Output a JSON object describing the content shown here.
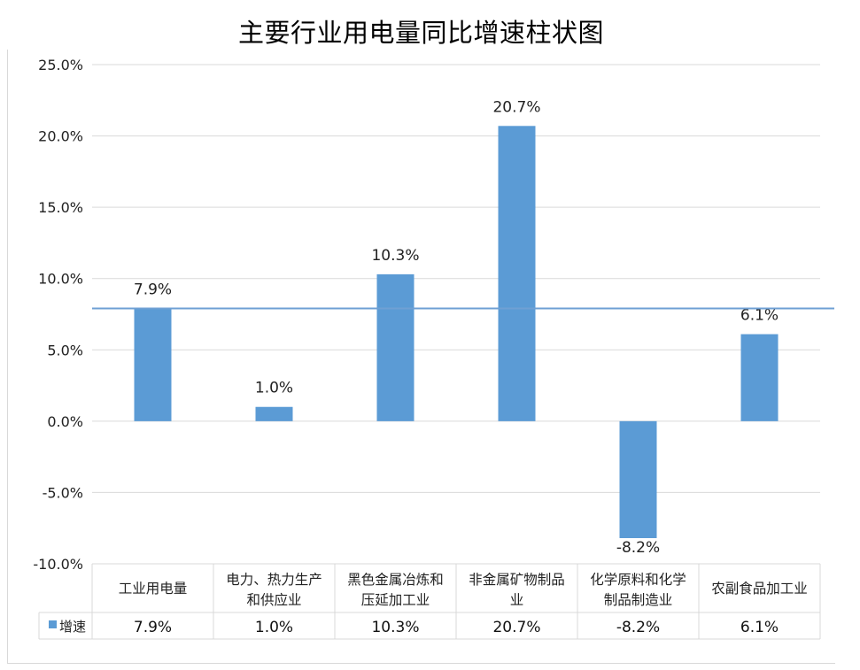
{
  "chart_data": {
    "type": "bar",
    "title": "主要行业用电量同比增速柱状图",
    "categories": [
      [
        "工业用电量"
      ],
      [
        "电力、热力生产",
        "和供应业"
      ],
      [
        "黑色金属冶炼和",
        "压延加工业"
      ],
      [
        "非金属矿物制品",
        "业"
      ],
      [
        "化学原料和化学",
        "制品制造业"
      ],
      [
        "农副食品加工业"
      ]
    ],
    "series": [
      {
        "name": "增速",
        "values": [
          7.9,
          1.0,
          10.3,
          20.7,
          -8.2,
          6.1
        ]
      }
    ],
    "data_labels": [
      "7.9%",
      "1.0%",
      "10.3%",
      "20.7%",
      "-8.2%",
      "6.1%"
    ],
    "yticks": [
      "25.0%",
      "20.0%",
      "15.0%",
      "10.0%",
      "5.0%",
      "0.0%",
      "-5.0%",
      "-10.0%"
    ],
    "ylim": [
      -10,
      25
    ],
    "reference_line": 7.9,
    "grid": true,
    "legend": "data-table",
    "bar_color": "#5b9bd5",
    "line_color": "#6fa0d4"
  }
}
